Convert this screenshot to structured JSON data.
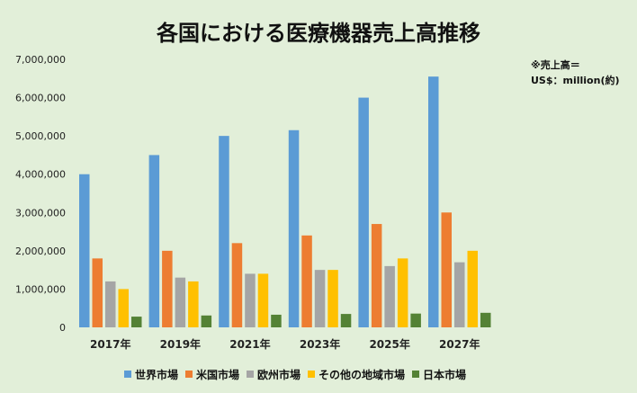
{
  "chart_data": {
    "type": "bar",
    "title": "各国における医療機器売上高推移",
    "note": [
      "※売上高＝",
      "US$：million(約)"
    ],
    "categories": [
      "2017年",
      "2019年",
      "2021年",
      "2023年",
      "2025年",
      "2027年"
    ],
    "ylim": [
      0,
      7000000
    ],
    "yticks": [
      "0",
      "1,000,000",
      "2,000,000",
      "3,000,000",
      "4,000,000",
      "5,000,000",
      "6,000,000",
      "7,000,000"
    ],
    "legend_position": "bottom",
    "grid": false,
    "series": [
      {
        "name": "世界市場",
        "color": "#5b9bd5",
        "values": [
          4000000,
          4500000,
          5000000,
          5150000,
          6000000,
          6550000
        ]
      },
      {
        "name": "米国市場",
        "color": "#ed7d31",
        "values": [
          1800000,
          2000000,
          2200000,
          2400000,
          2700000,
          3000000
        ]
      },
      {
        "name": "欧州市場",
        "color": "#a5a5a5",
        "values": [
          1200000,
          1300000,
          1400000,
          1500000,
          1600000,
          1700000
        ]
      },
      {
        "name": "その他の地域市場",
        "color": "#ffc000",
        "values": [
          1000000,
          1200000,
          1400000,
          1500000,
          1800000,
          2000000
        ]
      },
      {
        "name": "日本市場",
        "color": "#548235",
        "values": [
          280000,
          310000,
          330000,
          350000,
          360000,
          380000
        ]
      }
    ]
  }
}
